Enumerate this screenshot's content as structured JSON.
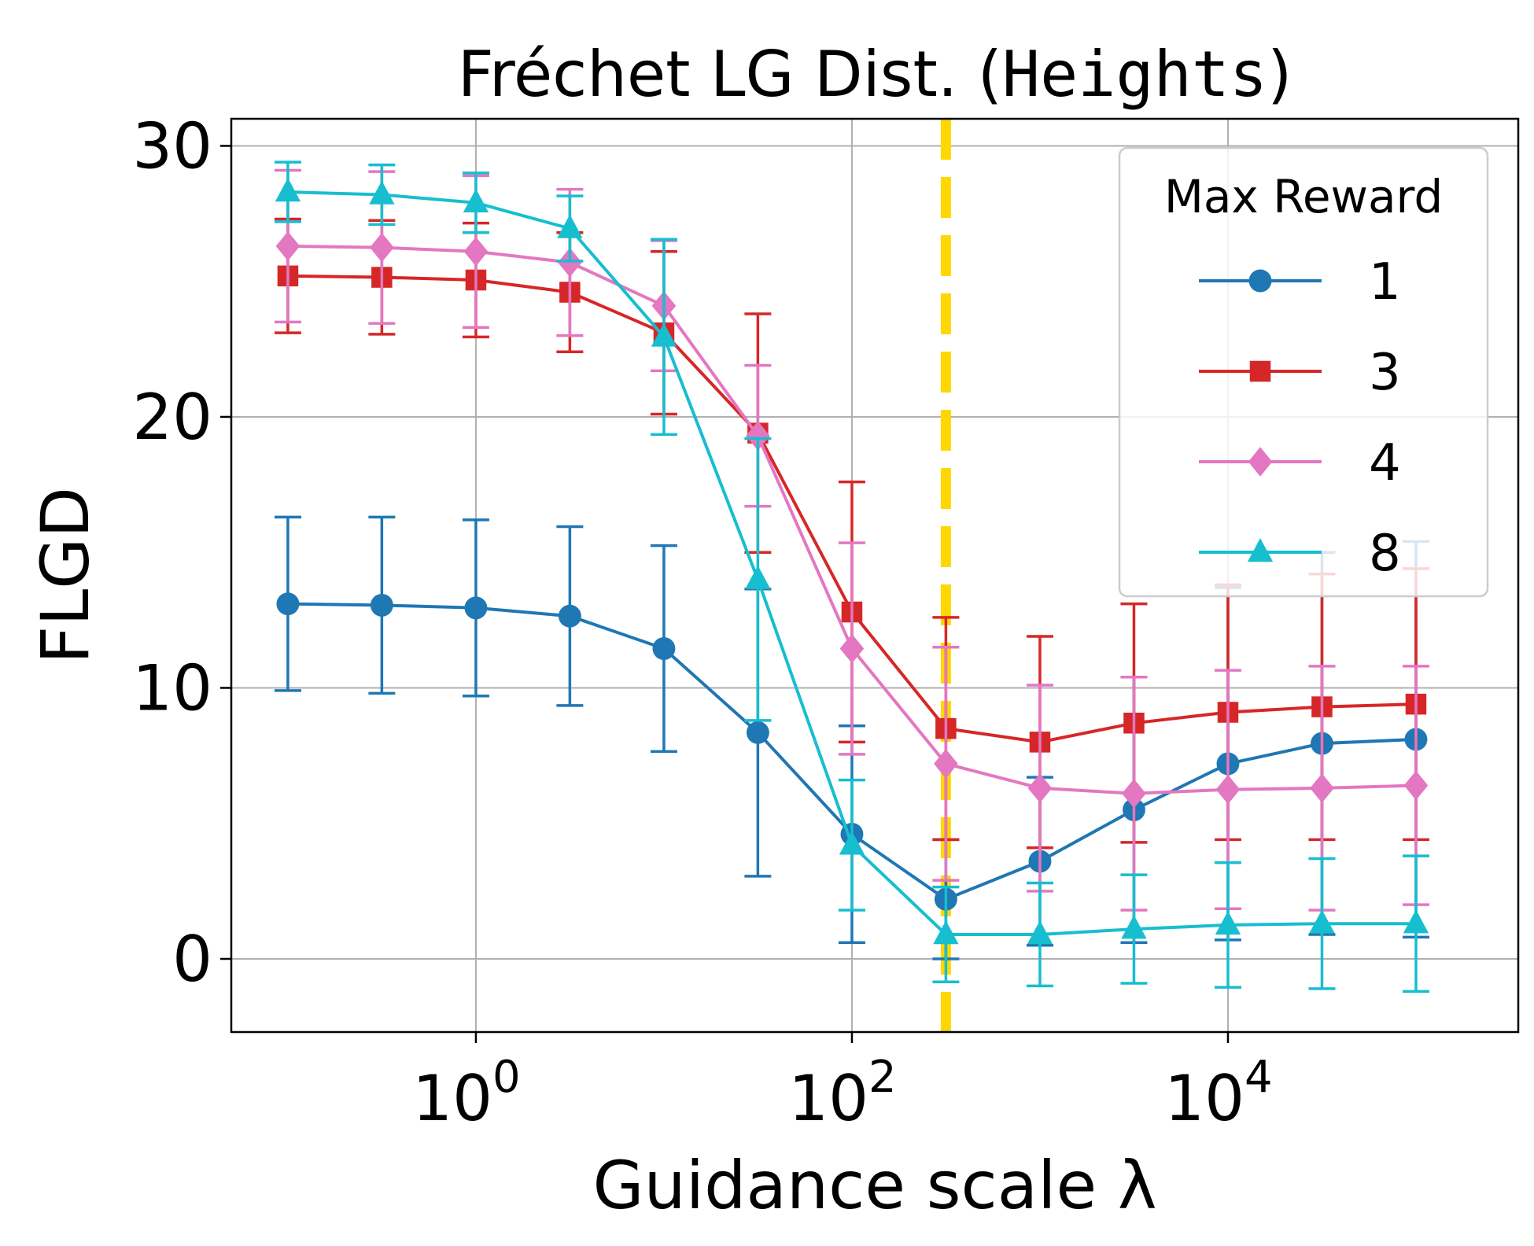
{
  "chart_data": {
    "type": "line",
    "title_prefix": "Fréchet LG Dist. (",
    "title_mono": "Heights",
    "title_suffix": ")",
    "xlabel": "Guidance scale λ",
    "ylabel": "FLGD",
    "xscale": "log",
    "xlim": [
      0.05,
      350000
    ],
    "ylim": [
      -2.7,
      31
    ],
    "yticks": [
      0,
      10,
      20,
      30
    ],
    "ytick_labels": [
      "0",
      "10",
      "20",
      "30"
    ],
    "xticks": [
      1,
      100,
      10000
    ],
    "xtick_base": "10",
    "xtick_exponents": [
      "0",
      "2",
      "4"
    ],
    "grid": true,
    "vline": {
      "x": 316,
      "color": "#ffd700",
      "style": "dashed"
    },
    "legend": {
      "title": "Max Reward",
      "position": "upper right"
    },
    "x": [
      0.1,
      0.316,
      1,
      3.16,
      10,
      31.6,
      100,
      316,
      1000,
      3162,
      10000,
      31623,
      100000
    ],
    "series": [
      {
        "name": "1",
        "color": "#1f77b4",
        "marker": "circle",
        "values": [
          13.1,
          13.05,
          12.95,
          12.65,
          11.45,
          8.35,
          4.6,
          2.2,
          3.6,
          5.5,
          7.2,
          7.95,
          8.1
        ],
        "err": [
          3.2,
          3.25,
          3.25,
          3.3,
          3.8,
          5.3,
          4.0,
          2.2,
          3.1,
          4.9,
          6.5,
          7.05,
          7.3
        ]
      },
      {
        "name": "3",
        "color": "#d62728",
        "marker": "square",
        "values": [
          25.2,
          25.15,
          25.05,
          24.6,
          23.1,
          19.4,
          12.8,
          8.5,
          8.0,
          8.7,
          9.1,
          9.3,
          9.4
        ],
        "err": [
          2.1,
          2.1,
          2.1,
          2.2,
          3.0,
          4.4,
          4.8,
          4.1,
          3.9,
          4.4,
          4.7,
          4.9,
          5.0
        ]
      },
      {
        "name": "4",
        "color": "#e377c2",
        "marker": "diamond",
        "values": [
          26.3,
          26.25,
          26.1,
          25.7,
          24.1,
          19.3,
          11.45,
          7.2,
          6.3,
          6.1,
          6.25,
          6.3,
          6.4
        ],
        "err": [
          2.8,
          2.8,
          2.8,
          2.7,
          2.4,
          2.6,
          3.9,
          4.3,
          3.8,
          4.3,
          4.4,
          4.5,
          4.4
        ]
      },
      {
        "name": "8",
        "color": "#17becf",
        "marker": "triangle",
        "values": [
          28.3,
          28.2,
          27.9,
          26.95,
          22.95,
          14.0,
          4.2,
          0.9,
          0.9,
          1.1,
          1.25,
          1.3,
          1.3
        ],
        "err": [
          1.1,
          1.1,
          1.1,
          1.2,
          3.6,
          5.2,
          2.4,
          1.75,
          1.9,
          2.0,
          2.3,
          2.4,
          2.5
        ]
      }
    ]
  }
}
